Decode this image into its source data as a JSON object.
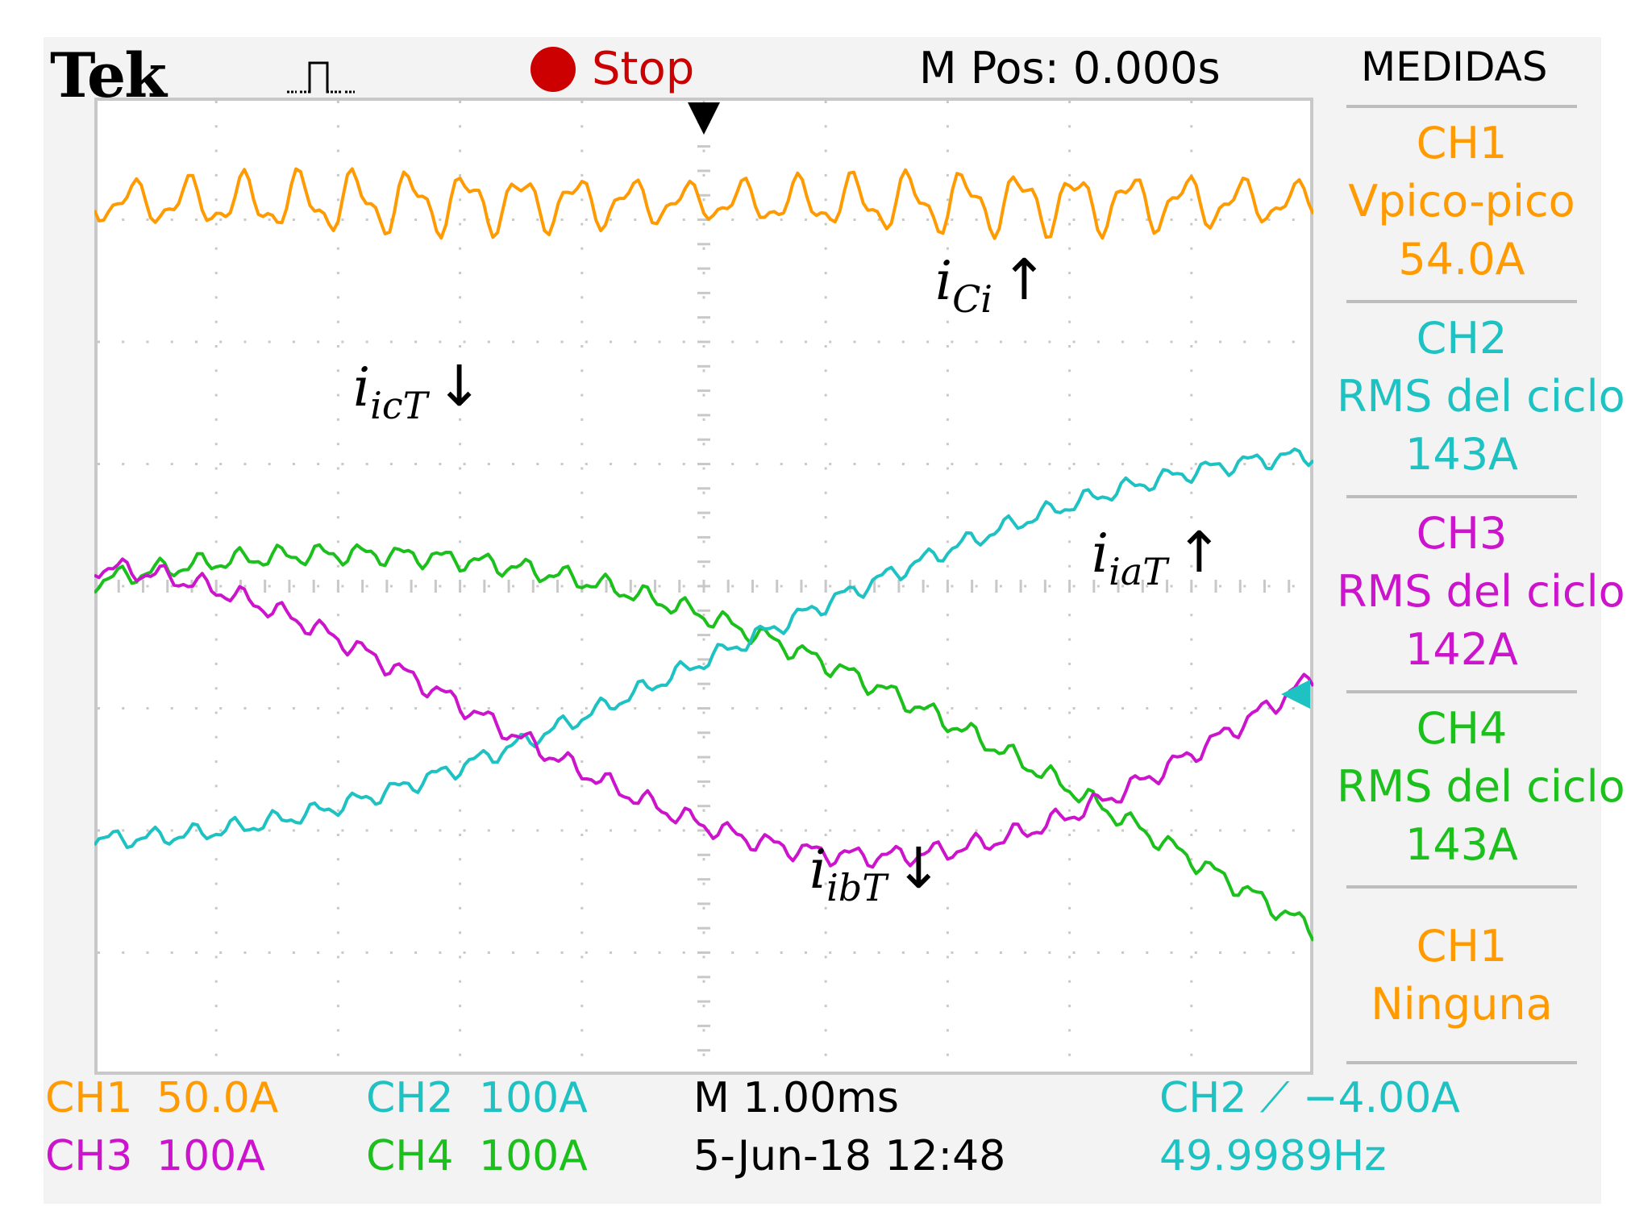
{
  "header": {
    "brand": "Tek",
    "run_state": "Stop",
    "position": "M Pos: 0.000s",
    "menu_title": "MEDIDAS"
  },
  "measurements": [
    {
      "channel": "CH1",
      "type": "Vpico-pico",
      "value": "54.0A",
      "color": "#ff9a00"
    },
    {
      "channel": "CH2",
      "type": "RMS del ciclo",
      "value": "143A",
      "color": "#1ec2c2"
    },
    {
      "channel": "CH3",
      "type": "RMS del ciclo",
      "value": "142A",
      "color": "#cc14cc"
    },
    {
      "channel": "CH4",
      "type": "RMS del ciclo",
      "value": "143A",
      "color": "#1cc01c"
    },
    {
      "channel": "CH1",
      "type": "Ninguna",
      "value": "",
      "color": "#ff9a00"
    }
  ],
  "status_bar": {
    "ch1": {
      "label": "CH1",
      "scale": "50.0A"
    },
    "ch2": {
      "label": "CH2",
      "scale": "100A"
    },
    "ch3": {
      "label": "CH3",
      "scale": "100A"
    },
    "ch4": {
      "label": "CH4",
      "scale": "100A"
    },
    "timebase": "M 1.00ms",
    "datetime": "5-Jun-18 12:48",
    "trigger": "CH2 ⟋ −4.00A",
    "frequency": "49.9989Hz"
  },
  "markers": {
    "ch1": "1",
    "ch2_ch3_ch4": "2"
  },
  "trace_labels": [
    {
      "main": "i",
      "sub": "Ci",
      "arrow": "↑"
    },
    {
      "main": "i",
      "sub": "icT",
      "arrow": "↓"
    },
    {
      "main": "i",
      "sub": "iaT",
      "arrow": "↑"
    },
    {
      "main": "i",
      "sub": "ibT",
      "arrow": "↓"
    }
  ],
  "colors": {
    "ch1": "#ff9a00",
    "ch2": "#1ec2c2",
    "ch3": "#cc14cc",
    "ch4": "#1cc01c",
    "stop": "#cc0000",
    "grid": "#c8c8c8"
  }
}
